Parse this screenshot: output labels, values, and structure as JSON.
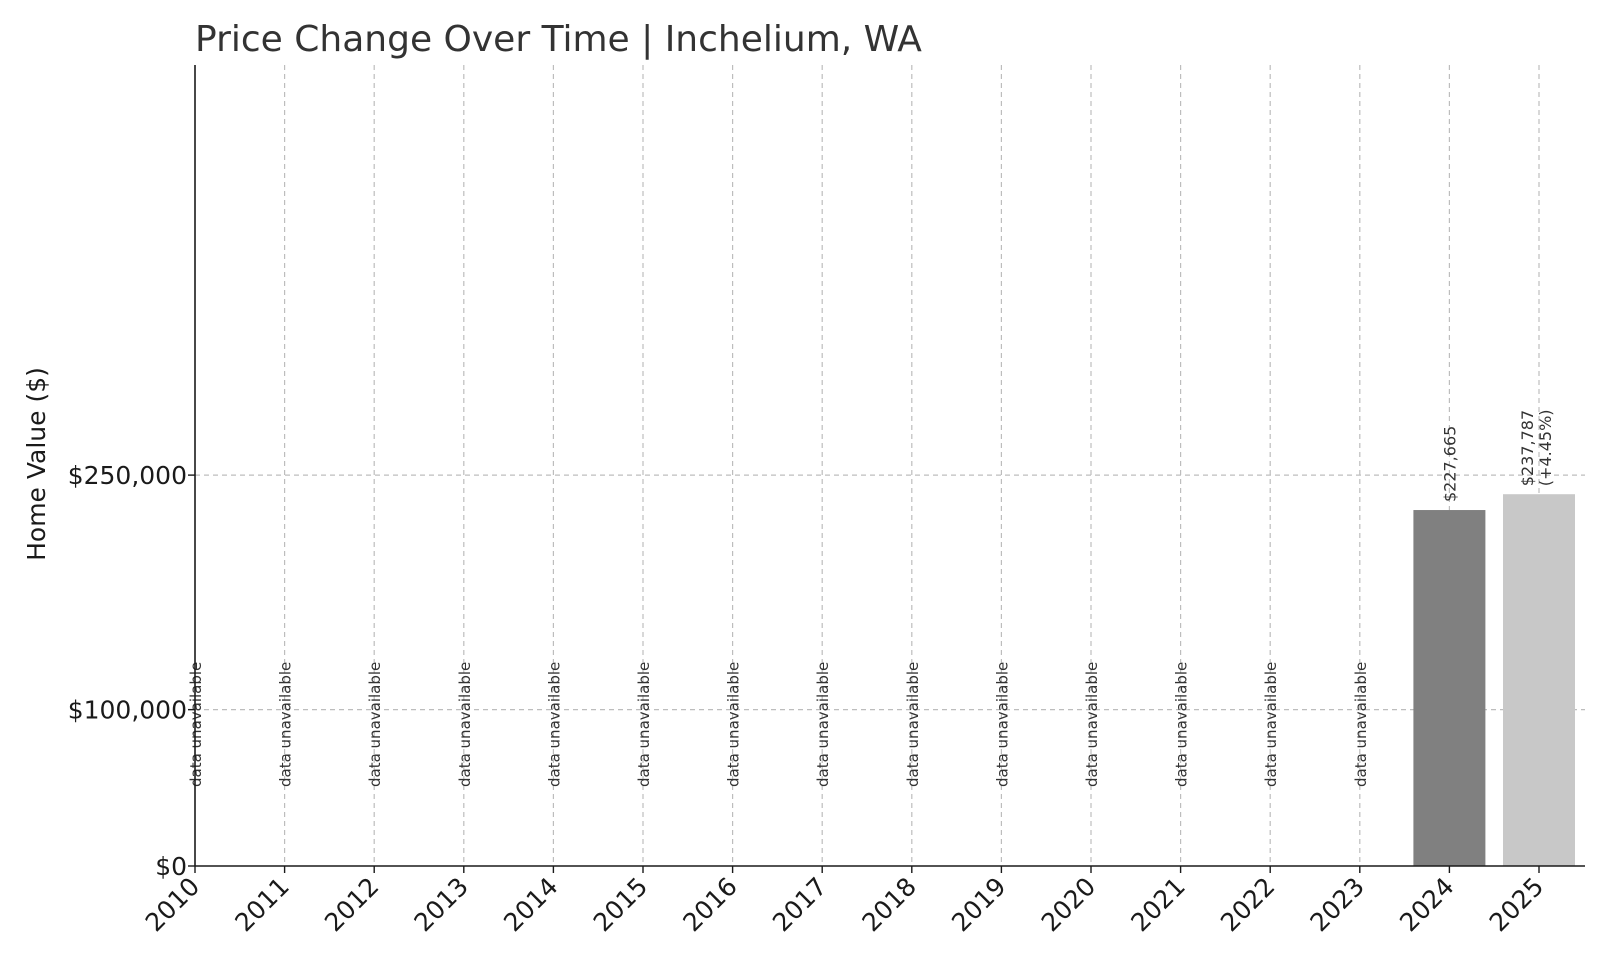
{
  "chart_data": {
    "type": "bar",
    "title": "Price Change Over Time | Inchelium, WA",
    "ylabel": "Home Value ($)",
    "xlabel": "",
    "categories": [
      "2010",
      "2011",
      "2012",
      "2013",
      "2014",
      "2015",
      "2016",
      "2017",
      "2018",
      "2019",
      "2020",
      "2021",
      "2022",
      "2023",
      "2024",
      "2025"
    ],
    "values": [
      null,
      null,
      null,
      null,
      null,
      null,
      null,
      null,
      null,
      null,
      null,
      null,
      null,
      null,
      227665,
      237787
    ],
    "value_labels": [
      "",
      "",
      "",
      "",
      "",
      "",
      "",
      "",
      "",
      "",
      "",
      "",
      "",
      "",
      "$227,665",
      "$237,787"
    ],
    "change_labels": [
      "",
      "",
      "",
      "",
      "",
      "",
      "",
      "",
      "",
      "",
      "",
      "",
      "",
      "",
      "",
      "(+4.45%)"
    ],
    "missing_label": "data unavailable",
    "yticks": [
      0,
      100000,
      250000
    ],
    "ytick_labels": [
      "$0",
      "$100,000",
      "$250,000"
    ],
    "ylim": [
      0,
      500000
    ],
    "grid": true,
    "colors": {
      "bar_2024": "#808080",
      "bar_2025": "#c8c8c8",
      "grid": "#bdbdbd"
    }
  }
}
